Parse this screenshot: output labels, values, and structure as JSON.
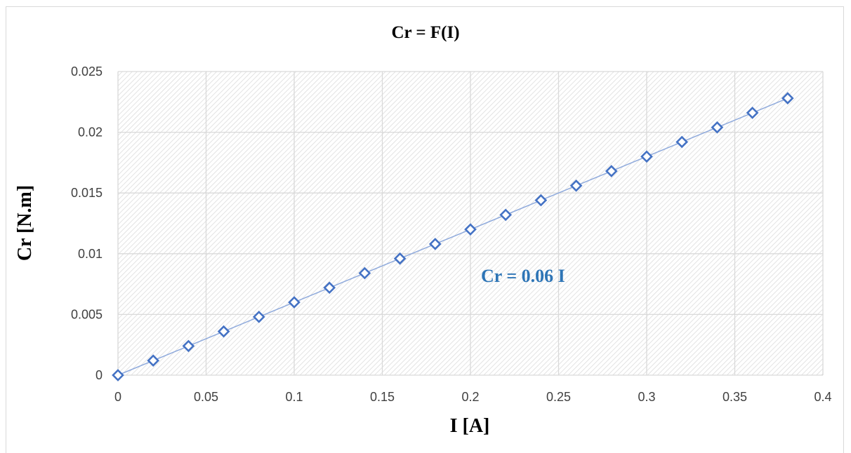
{
  "chart_data": {
    "type": "scatter",
    "title": "Cr = F(I)",
    "xlabel": "I [A]",
    "ylabel": "Cr [N.m]",
    "xlim": [
      0,
      0.4
    ],
    "ylim": [
      0,
      0.025
    ],
    "x_ticks": [
      "0",
      "0.05",
      "0.1",
      "0.15",
      "0.2",
      "0.25",
      "0.3",
      "0.35",
      "0.4"
    ],
    "y_ticks": [
      "0",
      "0.005",
      "0.01",
      "0.015",
      "0.02",
      "0.025"
    ],
    "grid": true,
    "legend": "none",
    "series": [
      {
        "marker": "diamond-open",
        "color": "#4472c4",
        "trendline_color": "#8faadc",
        "x": [
          0,
          0.02,
          0.04,
          0.06,
          0.08,
          0.1,
          0.12,
          0.14,
          0.16,
          0.18,
          0.2,
          0.22,
          0.24,
          0.26,
          0.28,
          0.3,
          0.32,
          0.34,
          0.36,
          0.38
        ],
        "y": [
          0,
          0.0012,
          0.0024,
          0.0036,
          0.0048,
          0.006,
          0.0072,
          0.0084,
          0.0096,
          0.0108,
          0.012,
          0.0132,
          0.0144,
          0.0156,
          0.0168,
          0.018,
          0.0192,
          0.0204,
          0.0216,
          0.0228
        ]
      }
    ],
    "annotation": {
      "text": "Cr = 0.06 I",
      "color": "#2e75b6"
    },
    "plot_background": "hatched-gray",
    "grid_color": "#d9d9d9"
  }
}
